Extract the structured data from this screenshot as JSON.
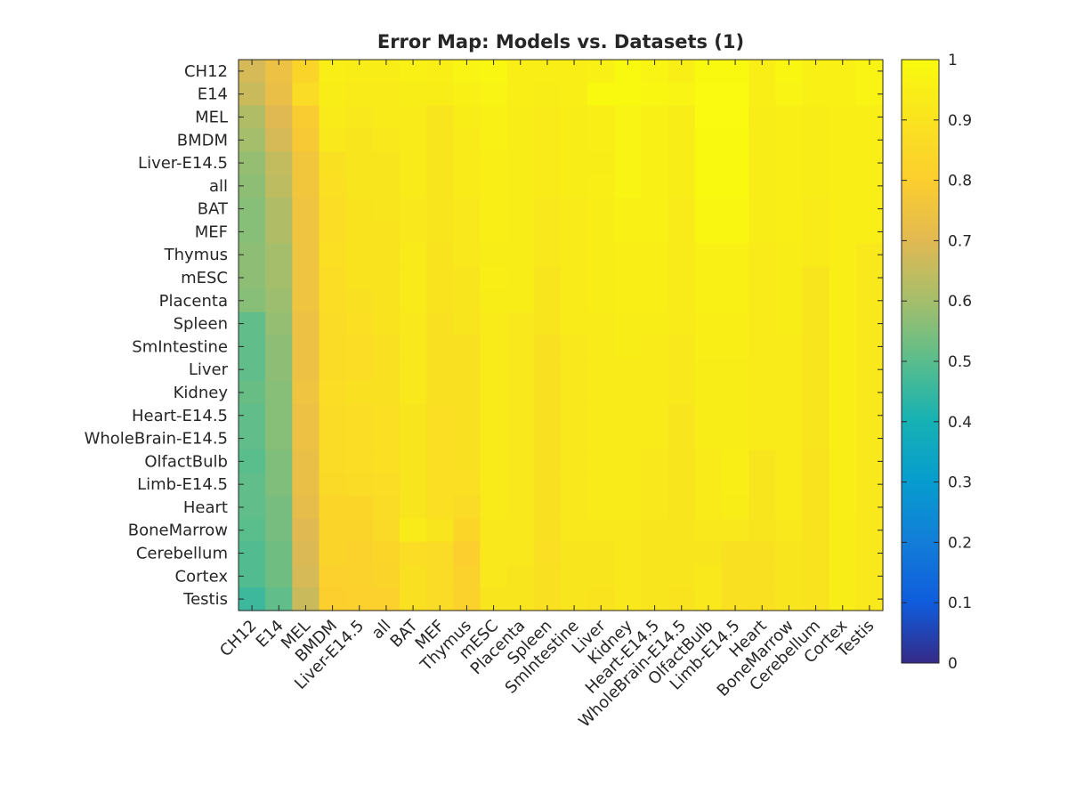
{
  "chart_data": {
    "type": "heatmap",
    "title": "Error Map: Models vs. Datasets (1)",
    "xlabel": "",
    "ylabel": "",
    "colormap": "parula",
    "clim": [
      0,
      1
    ],
    "colorbar_ticks": [
      "0",
      "0.1",
      "0.2",
      "0.3",
      "0.4",
      "0.5",
      "0.6",
      "0.7",
      "0.8",
      "0.9",
      "1"
    ],
    "rows": [
      "CH12",
      "E14",
      "MEL",
      "BMDM",
      "Liver-E14.5",
      "all",
      "BAT",
      "MEF",
      "Thymus",
      "mESC",
      "Placenta",
      "Spleen",
      "SmIntestine",
      "Liver",
      "Kidney",
      "Heart-E14.5",
      "WholeBrain-E14.5",
      "OlfactBulb",
      "Limb-E14.5",
      "Heart",
      "BoneMarrow",
      "Cerebellum",
      "Cortex",
      "Testis"
    ],
    "columns": [
      "CH12",
      "E14",
      "MEL",
      "BMDM",
      "Liver-E14.5",
      "all",
      "BAT",
      "MEF",
      "Thymus",
      "mESC",
      "Placenta",
      "Spleen",
      "SmIntestine",
      "Liver",
      "Kidney",
      "Heart-E14.5",
      "WholeBrain-E14.5",
      "OlfactBulb",
      "Limb-E14.5",
      "Heart",
      "BoneMarrow",
      "Cerebellum",
      "Cortex",
      "Testis"
    ],
    "values": [
      [
        0.68,
        0.74,
        0.83,
        0.95,
        0.94,
        0.94,
        0.96,
        0.95,
        0.97,
        0.98,
        0.95,
        0.95,
        0.95,
        0.96,
        0.99,
        0.97,
        0.95,
        0.99,
        0.99,
        0.95,
        0.98,
        0.96,
        0.96,
        0.97
      ],
      [
        0.66,
        0.73,
        0.86,
        0.94,
        0.93,
        0.93,
        0.94,
        0.94,
        0.96,
        0.97,
        0.95,
        0.94,
        0.95,
        0.99,
        0.99,
        0.98,
        0.97,
        0.995,
        0.995,
        0.95,
        0.97,
        0.96,
        0.96,
        0.97
      ],
      [
        0.62,
        0.7,
        0.79,
        0.93,
        0.92,
        0.93,
        0.93,
        0.91,
        0.94,
        0.96,
        0.94,
        0.93,
        0.94,
        0.95,
        0.97,
        0.96,
        0.94,
        0.995,
        0.995,
        0.94,
        0.95,
        0.94,
        0.95,
        0.95
      ],
      [
        0.6,
        0.68,
        0.78,
        0.92,
        0.91,
        0.92,
        0.93,
        0.91,
        0.93,
        0.96,
        0.94,
        0.93,
        0.94,
        0.95,
        0.97,
        0.96,
        0.94,
        0.99,
        0.99,
        0.94,
        0.95,
        0.94,
        0.95,
        0.95
      ],
      [
        0.58,
        0.65,
        0.76,
        0.89,
        0.91,
        0.91,
        0.93,
        0.91,
        0.93,
        0.95,
        0.94,
        0.93,
        0.94,
        0.94,
        0.97,
        0.96,
        0.94,
        0.99,
        0.99,
        0.94,
        0.95,
        0.94,
        0.95,
        0.95
      ],
      [
        0.57,
        0.64,
        0.76,
        0.88,
        0.91,
        0.91,
        0.93,
        0.91,
        0.93,
        0.95,
        0.94,
        0.93,
        0.94,
        0.95,
        0.97,
        0.96,
        0.94,
        0.99,
        0.99,
        0.94,
        0.95,
        0.94,
        0.95,
        0.95
      ],
      [
        0.56,
        0.62,
        0.75,
        0.87,
        0.9,
        0.91,
        0.92,
        0.91,
        0.92,
        0.95,
        0.94,
        0.92,
        0.93,
        0.94,
        0.96,
        0.96,
        0.93,
        0.98,
        0.98,
        0.94,
        0.95,
        0.93,
        0.95,
        0.95
      ],
      [
        0.56,
        0.62,
        0.75,
        0.87,
        0.9,
        0.9,
        0.92,
        0.91,
        0.92,
        0.95,
        0.94,
        0.92,
        0.93,
        0.94,
        0.96,
        0.96,
        0.93,
        0.98,
        0.98,
        0.94,
        0.95,
        0.93,
        0.95,
        0.95
      ],
      [
        0.57,
        0.6,
        0.75,
        0.88,
        0.9,
        0.9,
        0.93,
        0.9,
        0.92,
        0.94,
        0.94,
        0.92,
        0.93,
        0.94,
        0.95,
        0.95,
        0.93,
        0.96,
        0.96,
        0.93,
        0.94,
        0.93,
        0.95,
        0.92
      ],
      [
        0.57,
        0.6,
        0.75,
        0.87,
        0.9,
        0.9,
        0.93,
        0.9,
        0.91,
        0.95,
        0.94,
        0.91,
        0.93,
        0.94,
        0.95,
        0.95,
        0.93,
        0.96,
        0.96,
        0.93,
        0.94,
        0.91,
        0.95,
        0.92
      ],
      [
        0.56,
        0.59,
        0.75,
        0.87,
        0.89,
        0.9,
        0.93,
        0.9,
        0.91,
        0.94,
        0.94,
        0.91,
        0.93,
        0.94,
        0.95,
        0.95,
        0.93,
        0.96,
        0.96,
        0.93,
        0.94,
        0.91,
        0.95,
        0.92
      ],
      [
        0.51,
        0.58,
        0.74,
        0.86,
        0.88,
        0.9,
        0.92,
        0.89,
        0.91,
        0.93,
        0.92,
        0.91,
        0.93,
        0.93,
        0.94,
        0.94,
        0.93,
        0.95,
        0.95,
        0.93,
        0.94,
        0.91,
        0.95,
        0.92
      ],
      [
        0.51,
        0.57,
        0.74,
        0.86,
        0.87,
        0.89,
        0.92,
        0.89,
        0.89,
        0.93,
        0.92,
        0.89,
        0.92,
        0.93,
        0.94,
        0.93,
        0.92,
        0.95,
        0.95,
        0.93,
        0.93,
        0.91,
        0.95,
        0.92
      ],
      [
        0.51,
        0.57,
        0.74,
        0.86,
        0.87,
        0.89,
        0.92,
        0.89,
        0.89,
        0.93,
        0.92,
        0.89,
        0.92,
        0.93,
        0.93,
        0.93,
        0.92,
        0.94,
        0.94,
        0.93,
        0.93,
        0.91,
        0.95,
        0.92
      ],
      [
        0.52,
        0.56,
        0.75,
        0.87,
        0.89,
        0.89,
        0.92,
        0.89,
        0.89,
        0.93,
        0.92,
        0.89,
        0.92,
        0.93,
        0.93,
        0.93,
        0.92,
        0.94,
        0.94,
        0.93,
        0.93,
        0.91,
        0.95,
        0.92
      ],
      [
        0.51,
        0.56,
        0.74,
        0.86,
        0.87,
        0.88,
        0.91,
        0.88,
        0.89,
        0.93,
        0.92,
        0.89,
        0.92,
        0.93,
        0.93,
        0.93,
        0.91,
        0.94,
        0.94,
        0.93,
        0.93,
        0.91,
        0.95,
        0.92
      ],
      [
        0.51,
        0.56,
        0.74,
        0.86,
        0.87,
        0.88,
        0.91,
        0.88,
        0.89,
        0.93,
        0.92,
        0.89,
        0.92,
        0.93,
        0.93,
        0.93,
        0.91,
        0.94,
        0.94,
        0.93,
        0.93,
        0.91,
        0.95,
        0.92
      ],
      [
        0.5,
        0.55,
        0.73,
        0.86,
        0.87,
        0.88,
        0.91,
        0.88,
        0.89,
        0.93,
        0.92,
        0.89,
        0.92,
        0.93,
        0.93,
        0.92,
        0.91,
        0.93,
        0.95,
        0.91,
        0.93,
        0.9,
        0.95,
        0.92
      ],
      [
        0.51,
        0.55,
        0.73,
        0.85,
        0.86,
        0.87,
        0.91,
        0.88,
        0.88,
        0.93,
        0.92,
        0.89,
        0.92,
        0.93,
        0.93,
        0.92,
        0.91,
        0.93,
        0.95,
        0.91,
        0.93,
        0.9,
        0.95,
        0.92
      ],
      [
        0.51,
        0.54,
        0.72,
        0.84,
        0.84,
        0.86,
        0.91,
        0.88,
        0.86,
        0.93,
        0.92,
        0.89,
        0.92,
        0.93,
        0.93,
        0.92,
        0.91,
        0.93,
        0.94,
        0.91,
        0.93,
        0.9,
        0.95,
        0.92
      ],
      [
        0.5,
        0.54,
        0.7,
        0.83,
        0.83,
        0.85,
        0.93,
        0.91,
        0.84,
        0.92,
        0.92,
        0.89,
        0.92,
        0.92,
        0.92,
        0.91,
        0.91,
        0.92,
        0.92,
        0.91,
        0.92,
        0.9,
        0.94,
        0.92
      ],
      [
        0.49,
        0.53,
        0.69,
        0.83,
        0.82,
        0.84,
        0.87,
        0.86,
        0.8,
        0.92,
        0.92,
        0.88,
        0.91,
        0.91,
        0.92,
        0.91,
        0.91,
        0.91,
        0.89,
        0.89,
        0.91,
        0.9,
        0.94,
        0.92
      ],
      [
        0.49,
        0.53,
        0.68,
        0.81,
        0.82,
        0.83,
        0.89,
        0.86,
        0.82,
        0.92,
        0.91,
        0.89,
        0.91,
        0.91,
        0.92,
        0.91,
        0.91,
        0.92,
        0.89,
        0.89,
        0.91,
        0.9,
        0.94,
        0.92
      ],
      [
        0.46,
        0.51,
        0.66,
        0.8,
        0.81,
        0.81,
        0.89,
        0.86,
        0.82,
        0.91,
        0.91,
        0.89,
        0.91,
        0.9,
        0.92,
        0.91,
        0.9,
        0.92,
        0.89,
        0.89,
        0.91,
        0.9,
        0.94,
        0.92
      ]
    ]
  }
}
